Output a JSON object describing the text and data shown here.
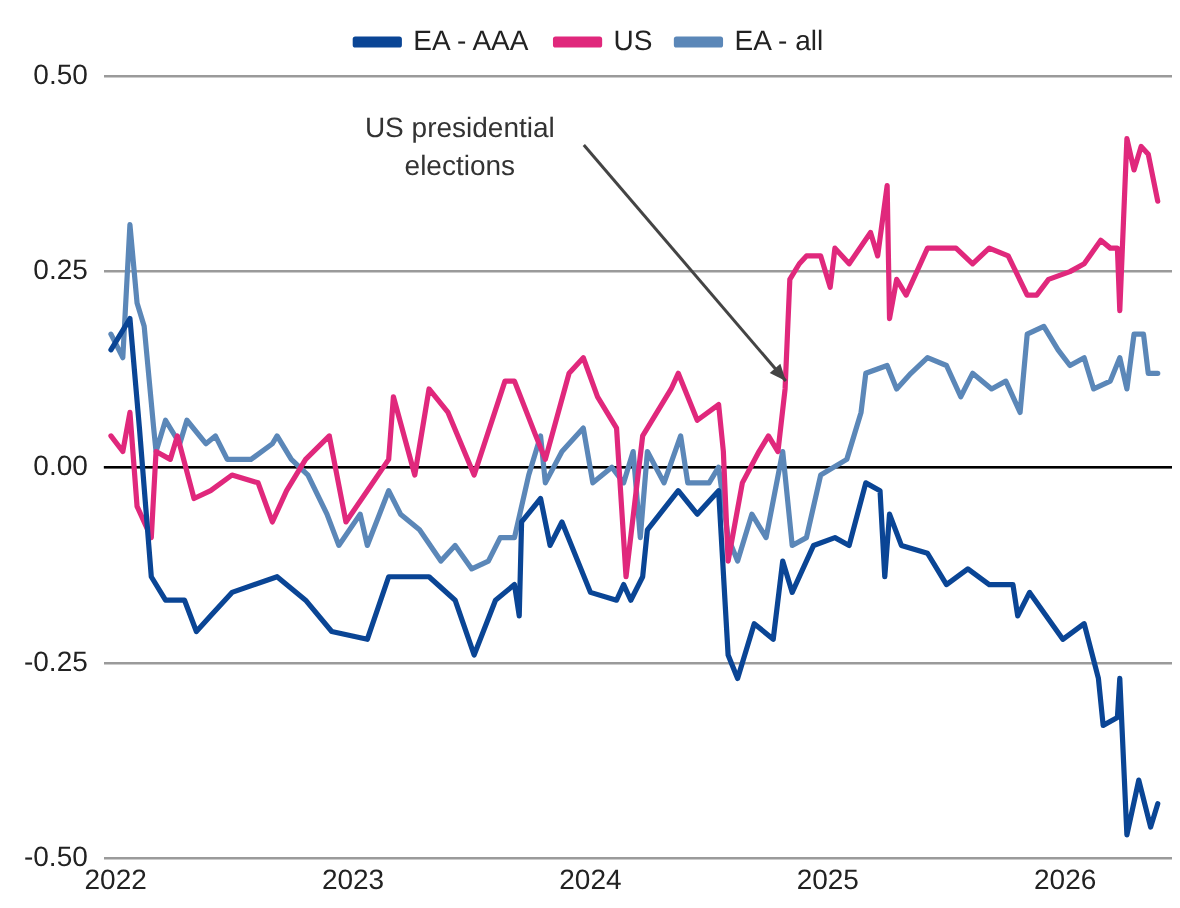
{
  "chart_data": {
    "type": "line",
    "legend": "top",
    "grid": "y",
    "marker": "none",
    "line_style": "solid",
    "xlim": [
      2021.95,
      2026.45
    ],
    "xticks": [
      2022,
      2023,
      2024,
      2025,
      2026
    ],
    "ylim": [
      -0.5,
      0.5
    ],
    "yticks": [
      {
        "value": -0.5,
        "label": "-0.50"
      },
      {
        "value": -0.25,
        "label": "-0.25"
      },
      {
        "value": 0,
        "label": "0.00"
      },
      {
        "value": 0.25,
        "label": "0.25"
      },
      {
        "value": 0.5,
        "label": "0.50"
      }
    ],
    "ref_lines": [
      {
        "axis": "y",
        "value": 0,
        "color": "#000000"
      }
    ],
    "annotations": [
      {
        "text": "US presidential elections",
        "x": 2024.84,
        "y": 0.1
      }
    ],
    "series": [
      {
        "name": "EA - AAA",
        "color": "#0a4595",
        "x": [
          2021.98,
          2022.06,
          2022.1,
          2022.15,
          2022.21,
          2022.29,
          2022.34,
          2022.4,
          2022.49,
          2022.68,
          2022.8,
          2022.91,
          2023.06,
          2023.15,
          2023.32,
          2023.43,
          2023.51,
          2023.6,
          2023.68,
          2023.7,
          2023.71,
          2023.79,
          2023.83,
          2023.88,
          2024.0,
          2024.11,
          2024.14,
          2024.17,
          2024.22,
          2024.24,
          2024.37,
          2024.45,
          2024.54,
          2024.58,
          2024.62,
          2024.69,
          2024.77,
          2024.81,
          2024.85,
          2024.94,
          2025.03,
          2025.09,
          2025.16,
          2025.22,
          2025.24,
          2025.26,
          2025.31,
          2025.42,
          2025.5,
          2025.59,
          2025.68,
          2025.78,
          2025.8,
          2025.85,
          2025.99,
          2026.08,
          2026.14,
          2026.16,
          2026.22,
          2026.23,
          2026.26,
          2026.31,
          2026.36,
          2026.39
        ],
        "values": [
          0.15,
          0.19,
          0.05,
          -0.14,
          -0.17,
          -0.17,
          -0.21,
          -0.19,
          -0.16,
          -0.14,
          -0.17,
          -0.21,
          -0.22,
          -0.14,
          -0.14,
          -0.17,
          -0.24,
          -0.17,
          -0.15,
          -0.19,
          -0.07,
          -0.04,
          -0.1,
          -0.07,
          -0.16,
          -0.17,
          -0.15,
          -0.17,
          -0.14,
          -0.08,
          -0.03,
          -0.06,
          -0.03,
          -0.24,
          -0.27,
          -0.2,
          -0.22,
          -0.12,
          -0.16,
          -0.1,
          -0.09,
          -0.1,
          -0.02,
          -0.03,
          -0.14,
          -0.06,
          -0.1,
          -0.11,
          -0.15,
          -0.13,
          -0.15,
          -0.15,
          -0.19,
          -0.16,
          -0.22,
          -0.2,
          -0.27,
          -0.33,
          -0.32,
          -0.27,
          -0.47,
          -0.4,
          -0.46,
          -0.43
        ]
      },
      {
        "name": "US",
        "color": "#e0287c",
        "x": [
          2021.98,
          2022.03,
          2022.06,
          2022.09,
          2022.15,
          2022.17,
          2022.23,
          2022.26,
          2022.33,
          2022.4,
          2022.49,
          2022.6,
          2022.66,
          2022.72,
          2022.8,
          2022.9,
          2022.97,
          2023.06,
          2023.15,
          2023.17,
          2023.26,
          2023.32,
          2023.4,
          2023.51,
          2023.64,
          2023.68,
          2023.77,
          2023.81,
          2023.91,
          2023.97,
          2024.03,
          2024.11,
          2024.15,
          2024.22,
          2024.34,
          2024.37,
          2024.45,
          2024.54,
          2024.56,
          2024.58,
          2024.64,
          2024.71,
          2024.75,
          2024.79,
          2024.82,
          2024.84,
          2024.88,
          2024.91,
          2024.97,
          2025.01,
          2025.03,
          2025.09,
          2025.18,
          2025.21,
          2025.25,
          2025.26,
          2025.29,
          2025.33,
          2025.42,
          2025.54,
          2025.61,
          2025.68,
          2025.76,
          2025.84,
          2025.88,
          2025.93,
          2026.02,
          2026.08,
          2026.15,
          2026.19,
          2026.22,
          2026.23,
          2026.26,
          2026.29,
          2026.32,
          2026.35,
          2026.39
        ],
        "values": [
          0.04,
          0.02,
          0.07,
          -0.05,
          -0.09,
          0.02,
          0.01,
          0.04,
          -0.04,
          -0.03,
          -0.01,
          -0.02,
          -0.07,
          -0.03,
          0.01,
          0.04,
          -0.07,
          -0.03,
          0.01,
          0.09,
          -0.01,
          0.1,
          0.07,
          -0.01,
          0.11,
          0.11,
          0.04,
          0.01,
          0.12,
          0.14,
          0.09,
          0.05,
          -0.14,
          0.04,
          0.1,
          0.12,
          0.06,
          0.08,
          0.02,
          -0.12,
          -0.02,
          0.02,
          0.04,
          0.02,
          0.1,
          0.24,
          0.26,
          0.27,
          0.27,
          0.23,
          0.28,
          0.26,
          0.3,
          0.27,
          0.36,
          0.19,
          0.24,
          0.22,
          0.28,
          0.28,
          0.26,
          0.28,
          0.27,
          0.22,
          0.22,
          0.24,
          0.25,
          0.26,
          0.29,
          0.28,
          0.28,
          0.2,
          0.42,
          0.38,
          0.41,
          0.4,
          0.34
        ]
      },
      {
        "name": "EA - all",
        "color": "#5b87b8",
        "x": [
          2021.98,
          2022.03,
          2022.06,
          2022.09,
          2022.12,
          2022.16,
          2022.17,
          2022.21,
          2022.27,
          2022.3,
          2022.38,
          2022.42,
          2022.47,
          2022.57,
          2022.66,
          2022.68,
          2022.74,
          2022.81,
          2022.89,
          2022.94,
          2023.03,
          2023.06,
          2023.15,
          2023.2,
          2023.28,
          2023.37,
          2023.43,
          2023.5,
          2023.57,
          2023.62,
          2023.68,
          2023.74,
          2023.79,
          2023.81,
          2023.88,
          2023.97,
          2024.01,
          2024.09,
          2024.14,
          2024.18,
          2024.21,
          2024.24,
          2024.31,
          2024.38,
          2024.41,
          2024.5,
          2024.54,
          2024.58,
          2024.62,
          2024.68,
          2024.74,
          2024.81,
          2024.85,
          2024.91,
          2024.97,
          2025.08,
          2025.14,
          2025.16,
          2025.25,
          2025.29,
          2025.35,
          2025.42,
          2025.5,
          2025.56,
          2025.61,
          2025.69,
          2025.75,
          2025.81,
          2025.84,
          2025.91,
          2025.97,
          2026.02,
          2026.08,
          2026.12,
          2026.19,
          2026.23,
          2026.26,
          2026.29,
          2026.33,
          2026.35,
          2026.39
        ],
        "values": [
          0.17,
          0.14,
          0.31,
          0.21,
          0.18,
          0.05,
          0.02,
          0.06,
          0.03,
          0.06,
          0.03,
          0.04,
          0.01,
          0.01,
          0.03,
          0.04,
          0.01,
          -0.01,
          -0.06,
          -0.1,
          -0.06,
          -0.1,
          -0.03,
          -0.06,
          -0.08,
          -0.12,
          -0.1,
          -0.13,
          -0.12,
          -0.09,
          -0.09,
          -0.01,
          0.04,
          -0.02,
          0.02,
          0.05,
          -0.02,
          0,
          -0.02,
          0.02,
          -0.09,
          0.02,
          -0.02,
          0.04,
          -0.02,
          -0.02,
          0,
          -0.09,
          -0.12,
          -0.06,
          -0.09,
          0.02,
          -0.1,
          -0.09,
          -0.01,
          0.01,
          0.07,
          0.12,
          0.13,
          0.1,
          0.12,
          0.14,
          0.13,
          0.09,
          0.12,
          0.1,
          0.11,
          0.07,
          0.17,
          0.18,
          0.15,
          0.13,
          0.14,
          0.1,
          0.11,
          0.14,
          0.1,
          0.17,
          0.17,
          0.12,
          0.12
        ]
      }
    ]
  }
}
